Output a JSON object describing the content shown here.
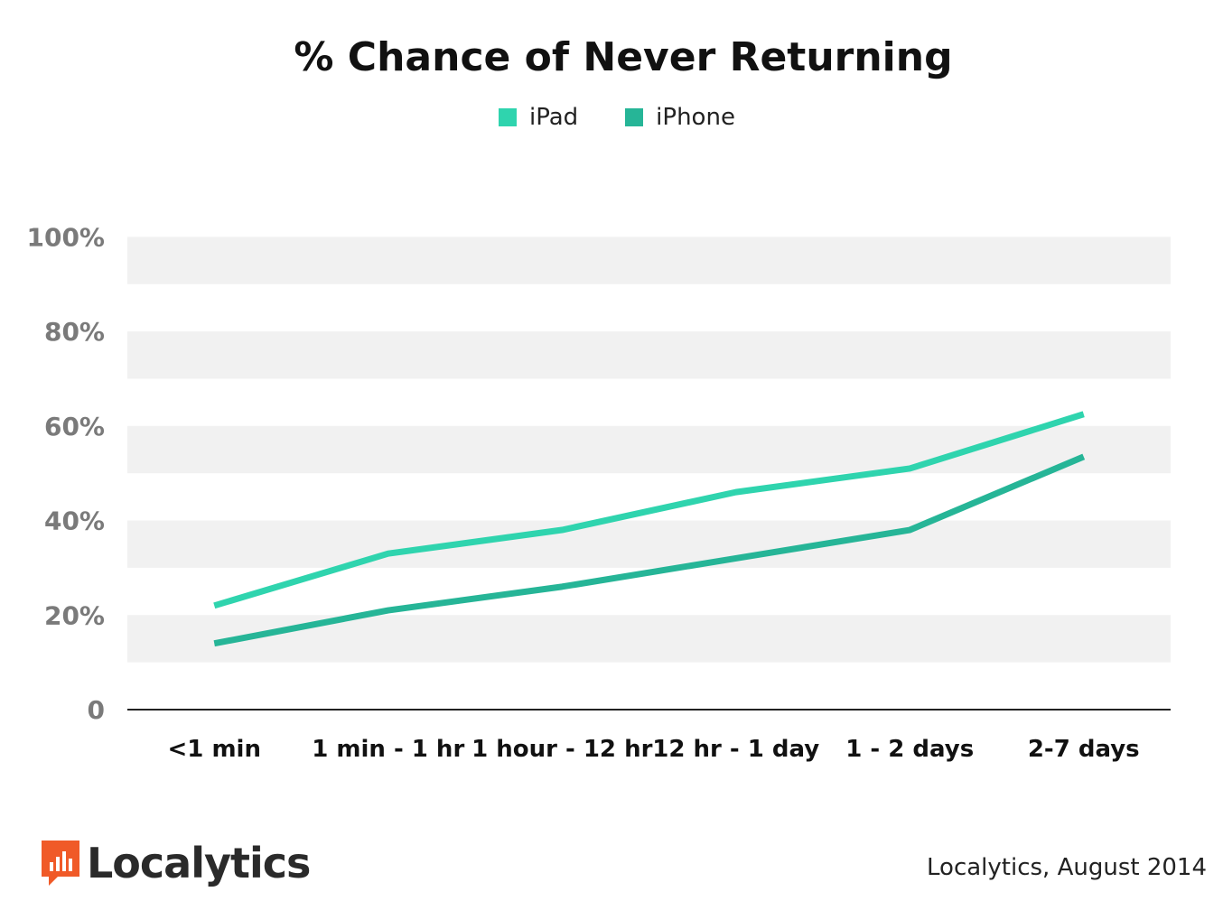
{
  "chart_data": {
    "type": "line",
    "title": "% Chance of Never Returning",
    "categories": [
      "<1 min",
      "1 min - 1 hr",
      "1 hour - 12 hr",
      "12 hr - 1 day",
      "1 - 2 days",
      "2-7 days"
    ],
    "series": [
      {
        "name": "iPad",
        "color": "#2fd4ae",
        "values": [
          22,
          33,
          38,
          46,
          51,
          62.5
        ]
      },
      {
        "name": "iPhone",
        "color": "#26b597",
        "values": [
          14,
          21,
          26,
          32,
          38,
          53.5
        ]
      }
    ],
    "ylim": [
      0,
      110
    ],
    "yticks": [
      0,
      20,
      40,
      60,
      80,
      100
    ],
    "ytick_labels": [
      "0",
      "20%",
      "40%",
      "60%",
      "80%",
      "100%"
    ],
    "grid": "alternating horizontal bands"
  },
  "legend": {
    "items": [
      {
        "label": "iPad",
        "color": "#2fd4ae"
      },
      {
        "label": "iPhone",
        "color": "#26b597"
      }
    ]
  },
  "footer": {
    "brand": "Localytics",
    "brand_color": "#f05a28",
    "source": "Localytics, August 2014"
  }
}
